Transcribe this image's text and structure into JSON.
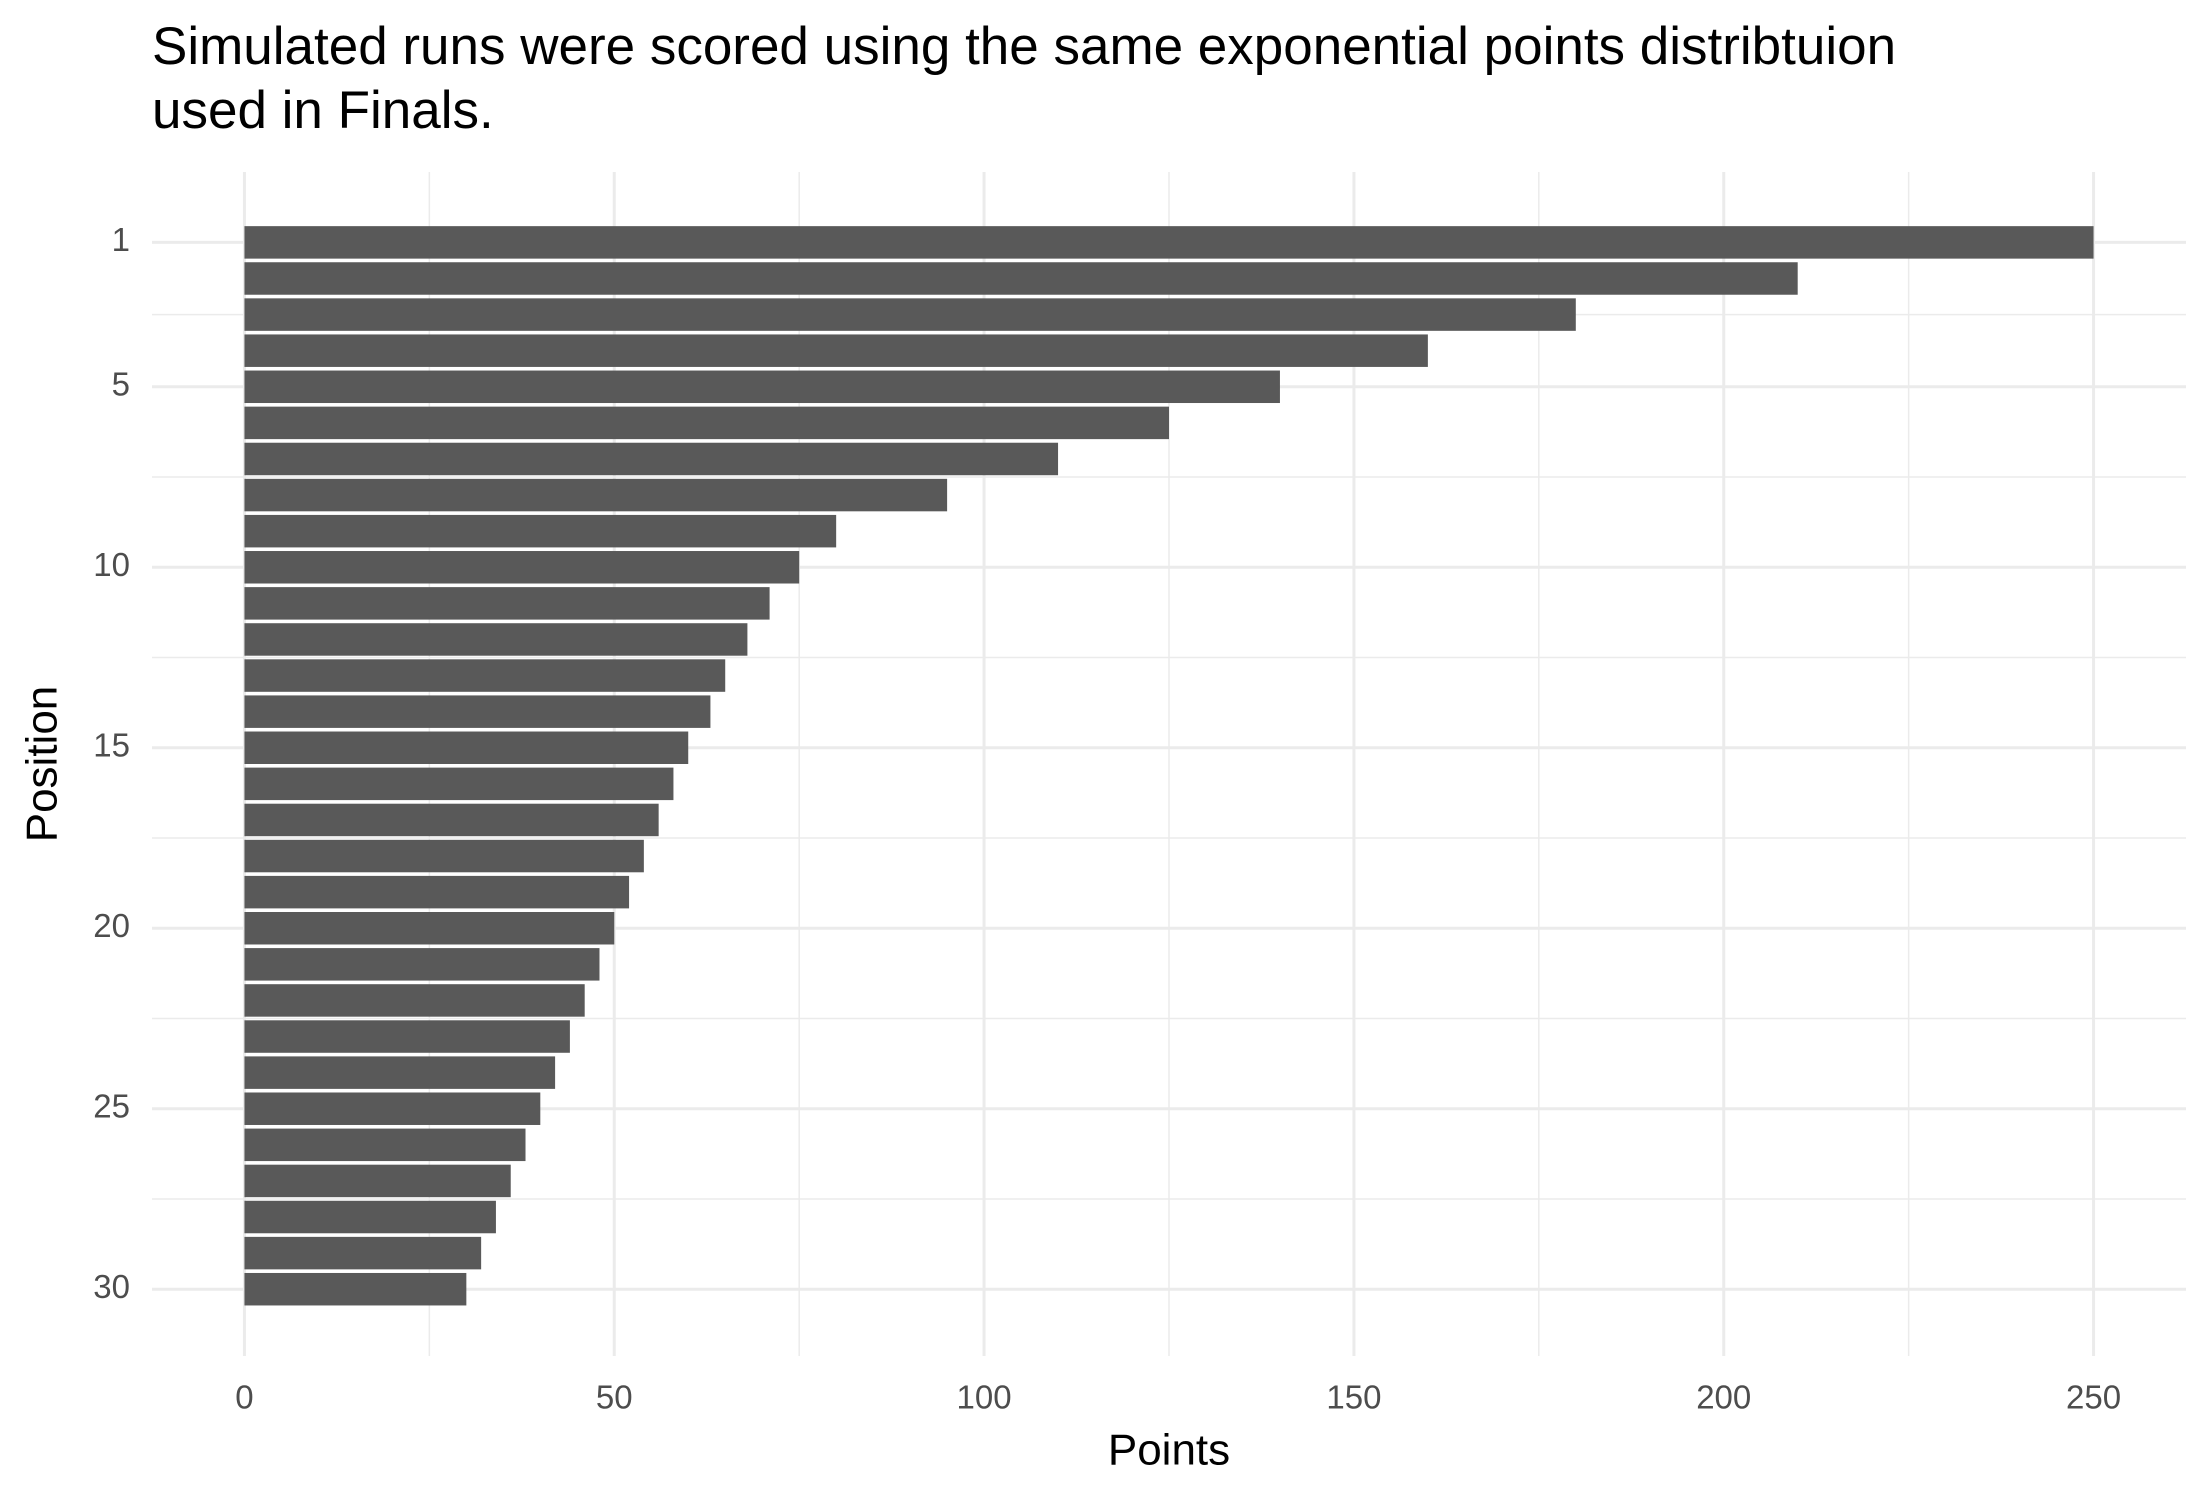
{
  "chart_data": {
    "type": "bar",
    "orientation": "horizontal",
    "title": [
      "Simulated runs were scored using the same exponential points distribtuion",
      "used in Finals."
    ],
    "x_label": "Points",
    "y_label": "Position",
    "positions": [
      1,
      2,
      3,
      4,
      5,
      6,
      7,
      8,
      9,
      10,
      11,
      12,
      13,
      14,
      15,
      16,
      17,
      18,
      19,
      20,
      21,
      22,
      23,
      24,
      25,
      26,
      27,
      28,
      29,
      30
    ],
    "values": [
      250,
      210,
      180,
      160,
      140,
      125,
      110,
      95,
      80,
      75,
      71,
      68,
      65,
      63,
      60,
      58,
      56,
      54,
      52,
      50,
      48,
      46,
      44,
      42,
      40,
      38,
      36,
      34,
      32,
      30
    ],
    "color": "#595959",
    "xlim": [
      -12.5,
      262.5
    ],
    "xticks": [
      0,
      50,
      100,
      150,
      200,
      250
    ],
    "x_minor_ticks": [
      25,
      75,
      125,
      175,
      225
    ],
    "ylim": [
      -0.95,
      31.85
    ],
    "yticks": [
      1,
      5,
      10,
      15,
      20,
      25,
      30
    ],
    "y_minor_ticks": [
      3,
      7.5,
      12.5,
      17.5,
      22.5,
      27.5
    ],
    "grid": true
  }
}
